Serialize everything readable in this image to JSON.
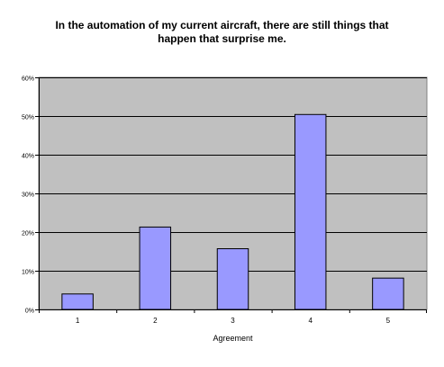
{
  "chart_data": {
    "type": "bar",
    "title_lines": [
      "In the automation of my current aircraft, there are still things that",
      "happen that surprise me."
    ],
    "xlabel": "Agreement",
    "ylabel": "",
    "categories": [
      "1",
      "2",
      "3",
      "4",
      "5"
    ],
    "values": [
      4,
      21.3,
      15.7,
      50.4,
      8.1
    ],
    "ylim": [
      0,
      60
    ],
    "yticks": [
      0,
      10,
      20,
      30,
      40,
      50,
      60
    ],
    "ytick_labels": [
      "0%",
      "10%",
      "20%",
      "30%",
      "40%",
      "50%",
      "60%"
    ],
    "grid": true,
    "legend": "none",
    "colors": {
      "plot_background": "#c0c0c0",
      "bar_fill": "#9999ff",
      "bar_stroke": "#000000",
      "gridline": "#000000"
    }
  }
}
